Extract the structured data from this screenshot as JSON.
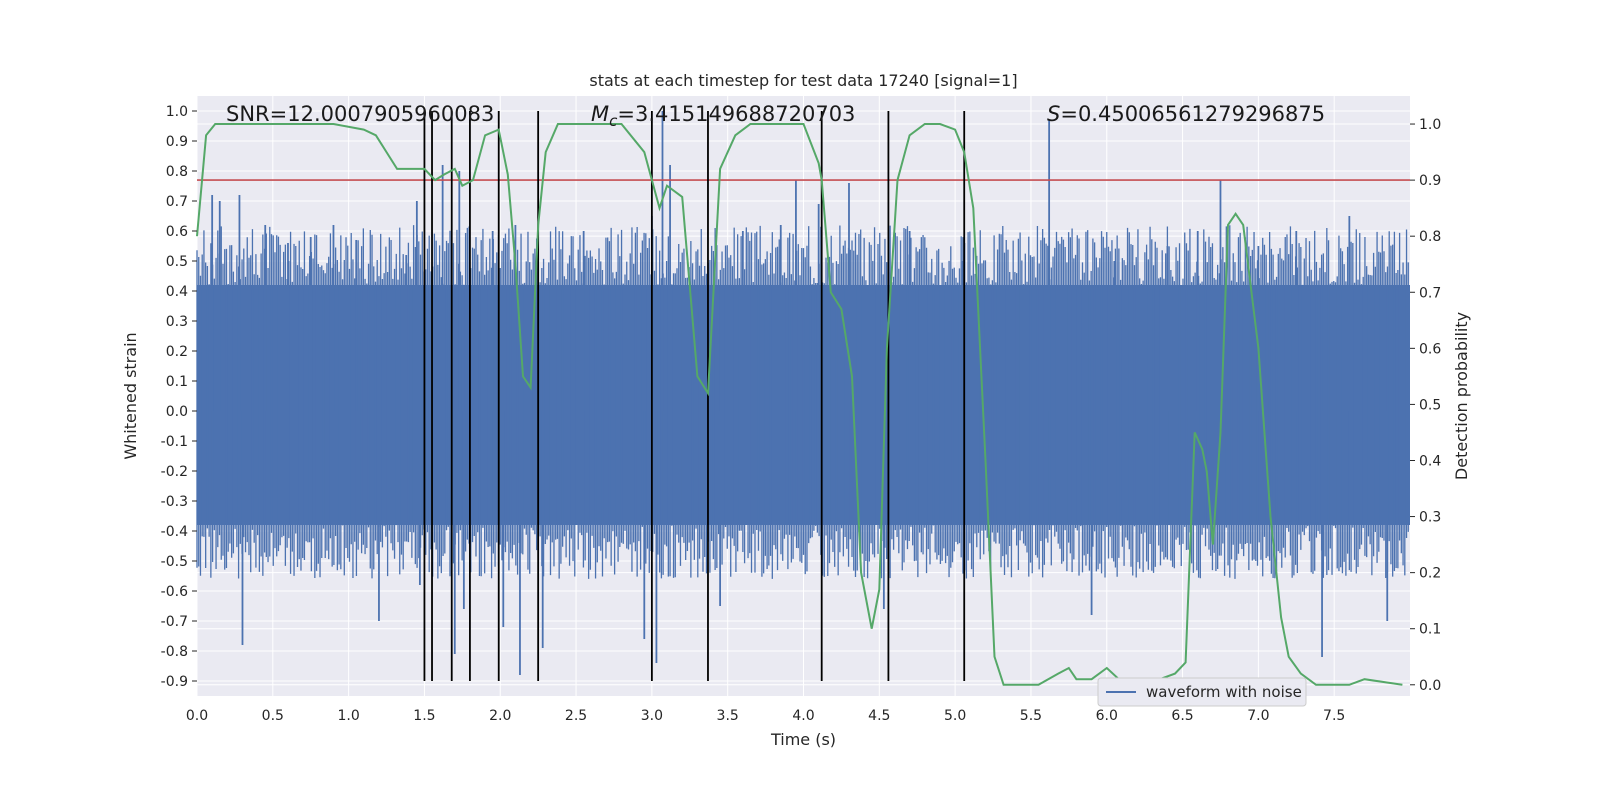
{
  "chart_data": {
    "type": "line",
    "title": "stats at each timestep for test data 17240 [signal=1]",
    "xlabel": "Time (s)",
    "ylabel": "Whitened strain",
    "ylabel_right": "Detection probability",
    "xlim": [
      0.0,
      8.0
    ],
    "ylim": [
      -0.95,
      1.05
    ],
    "ylim_right": [
      -0.02,
      1.05
    ],
    "x_ticks": [
      "0.0",
      "0.5",
      "1.0",
      "1.5",
      "2.0",
      "2.5",
      "3.0",
      "3.5",
      "4.0",
      "4.5",
      "5.0",
      "5.5",
      "6.0",
      "6.5",
      "7.0",
      "7.5"
    ],
    "x_tick_values": [
      0.0,
      0.5,
      1.0,
      1.5,
      2.0,
      2.5,
      3.0,
      3.5,
      4.0,
      4.5,
      5.0,
      5.5,
      6.0,
      6.5,
      7.0,
      7.5
    ],
    "y_ticks": [
      "1.0",
      "0.9",
      "0.8",
      "0.7",
      "0.6",
      "0.5",
      "0.4",
      "0.3",
      "0.2",
      "0.1",
      "0.0",
      "-0.1",
      "-0.2",
      "-0.3",
      "-0.4",
      "-0.5",
      "-0.6",
      "-0.7",
      "-0.8",
      "-0.9"
    ],
    "y_tick_values": [
      1.0,
      0.9,
      0.8,
      0.7,
      0.6,
      0.5,
      0.4,
      0.3,
      0.2,
      0.1,
      0.0,
      -0.1,
      -0.2,
      -0.3,
      -0.4,
      -0.5,
      -0.6,
      -0.7,
      -0.8,
      -0.9
    ],
    "y_right_ticks": [
      "1.0",
      "0.9",
      "0.8",
      "0.7",
      "0.6",
      "0.5",
      "0.4",
      "0.3",
      "0.2",
      "0.1",
      "0.0"
    ],
    "y_right_tick_values": [
      1.0,
      0.9,
      0.8,
      0.7,
      0.6,
      0.5,
      0.4,
      0.3,
      0.2,
      0.1,
      0.0
    ],
    "annotations": {
      "snr": "SNR=12.0007905960083",
      "mc_symbol": "M",
      "mc_sub": "c",
      "mc_value": "=3.415149688720703",
      "s_symbol": "S",
      "s_value": "=0.45006561279296875"
    },
    "legend": {
      "label": "waveform with noise",
      "position": "bottom-right"
    },
    "threshold_right": 0.9,
    "vertical_lines": [
      1.5,
      1.55,
      1.68,
      1.8,
      1.99,
      2.25,
      3.0,
      3.37,
      4.12,
      4.56,
      5.06
    ],
    "series": [
      {
        "name": "waveform with noise",
        "color": "#4c72b0",
        "x_range": [
          0.0,
          8.0
        ],
        "band_upper": 0.42,
        "band_lower": -0.38,
        "spikes": [
          {
            "x": 0.1,
            "y": 0.72
          },
          {
            "x": 0.15,
            "y": 0.7
          },
          {
            "x": 0.28,
            "y": 0.72
          },
          {
            "x": 0.3,
            "y": -0.78
          },
          {
            "x": 0.45,
            "y": 0.62
          },
          {
            "x": 0.6,
            "y": 0.56
          },
          {
            "x": 0.75,
            "y": 0.58
          },
          {
            "x": 0.9,
            "y": 0.62
          },
          {
            "x": 1.05,
            "y": 0.57
          },
          {
            "x": 1.2,
            "y": -0.7
          },
          {
            "x": 1.38,
            "y": 0.52
          },
          {
            "x": 1.45,
            "y": 0.7
          },
          {
            "x": 1.47,
            "y": -0.58
          },
          {
            "x": 1.62,
            "y": 0.82
          },
          {
            "x": 1.7,
            "y": -0.81
          },
          {
            "x": 1.73,
            "y": 0.8
          },
          {
            "x": 1.76,
            "y": -0.66
          },
          {
            "x": 1.95,
            "y": 0.6
          },
          {
            "x": 2.02,
            "y": -0.72
          },
          {
            "x": 2.1,
            "y": 0.62
          },
          {
            "x": 2.13,
            "y": -0.88
          },
          {
            "x": 2.28,
            "y": -0.79
          },
          {
            "x": 2.55,
            "y": 0.6
          },
          {
            "x": 2.95,
            "y": -0.76
          },
          {
            "x": 3.0,
            "y": 0.65
          },
          {
            "x": 3.03,
            "y": -0.84
          },
          {
            "x": 3.07,
            "y": 1.0
          },
          {
            "x": 3.12,
            "y": 0.82
          },
          {
            "x": 3.45,
            "y": -0.65
          },
          {
            "x": 3.6,
            "y": 0.6
          },
          {
            "x": 3.85,
            "y": 0.62
          },
          {
            "x": 3.95,
            "y": 0.77
          },
          {
            "x": 4.1,
            "y": 0.69
          },
          {
            "x": 4.3,
            "y": 0.76
          },
          {
            "x": 4.53,
            "y": -0.66
          },
          {
            "x": 4.7,
            "y": 0.6
          },
          {
            "x": 5.05,
            "y": 0.5
          },
          {
            "x": 5.62,
            "y": 0.97
          },
          {
            "x": 5.9,
            "y": -0.68
          },
          {
            "x": 6.05,
            "y": 0.5
          },
          {
            "x": 6.4,
            "y": 0.55
          },
          {
            "x": 6.6,
            "y": 0.6
          },
          {
            "x": 6.75,
            "y": 0.77
          },
          {
            "x": 7.0,
            "y": 0.55
          },
          {
            "x": 7.25,
            "y": 0.6
          },
          {
            "x": 7.42,
            "y": -0.82
          },
          {
            "x": 7.6,
            "y": 0.65
          },
          {
            "x": 7.85,
            "y": -0.7
          }
        ]
      },
      {
        "name": "detection probability",
        "axis": "right",
        "color": "#55a868",
        "x": [
          0.0,
          0.06,
          0.12,
          0.3,
          0.6,
          0.9,
          1.1,
          1.18,
          1.25,
          1.32,
          1.4,
          1.5,
          1.57,
          1.63,
          1.7,
          1.75,
          1.82,
          1.9,
          1.99,
          2.05,
          2.1,
          2.15,
          2.2,
          2.25,
          2.3,
          2.38,
          2.5,
          2.8,
          2.95,
          3.0,
          3.05,
          3.1,
          3.2,
          3.3,
          3.37,
          3.45,
          3.55,
          3.65,
          3.8,
          4.0,
          4.1,
          4.12,
          4.18,
          4.25,
          4.32,
          4.38,
          4.45,
          4.5,
          4.55,
          4.62,
          4.7,
          4.8,
          4.9,
          5.0,
          5.06,
          5.12,
          5.2,
          5.26,
          5.32,
          5.4,
          5.55,
          5.68,
          5.75,
          5.8,
          5.9,
          6.0,
          6.08,
          6.15,
          6.25,
          6.35,
          6.45,
          6.52,
          6.58,
          6.63,
          6.66,
          6.7,
          6.75,
          6.8,
          6.85,
          6.9,
          7.0,
          7.08,
          7.15,
          7.2,
          7.28,
          7.38,
          7.5,
          7.6,
          7.7,
          7.95
        ],
        "y": [
          0.8,
          0.98,
          1.0,
          1.0,
          1.0,
          1.0,
          0.99,
          0.98,
          0.95,
          0.92,
          0.92,
          0.92,
          0.9,
          0.91,
          0.92,
          0.89,
          0.9,
          0.98,
          0.99,
          0.91,
          0.75,
          0.55,
          0.53,
          0.82,
          0.95,
          1.0,
          1.0,
          1.0,
          0.95,
          0.9,
          0.85,
          0.89,
          0.87,
          0.55,
          0.52,
          0.92,
          0.98,
          1.0,
          1.0,
          1.0,
          0.93,
          0.9,
          0.7,
          0.67,
          0.55,
          0.2,
          0.1,
          0.17,
          0.6,
          0.9,
          0.98,
          1.0,
          1.0,
          0.99,
          0.95,
          0.85,
          0.4,
          0.05,
          0.0,
          0.0,
          0.0,
          0.02,
          0.03,
          0.01,
          0.01,
          0.03,
          0.01,
          0.0,
          0.0,
          0.01,
          0.02,
          0.04,
          0.45,
          0.42,
          0.38,
          0.25,
          0.45,
          0.82,
          0.84,
          0.82,
          0.6,
          0.3,
          0.12,
          0.05,
          0.02,
          0.0,
          0.0,
          0.0,
          0.01,
          0.0
        ]
      }
    ]
  }
}
